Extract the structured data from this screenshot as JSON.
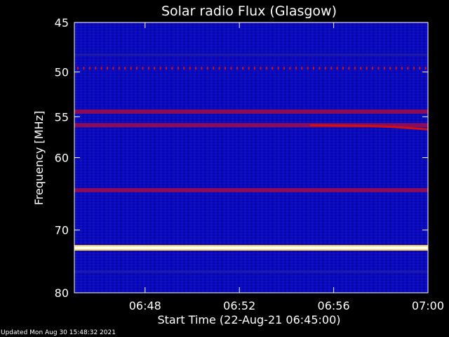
{
  "chart_data": {
    "type": "heatmap",
    "title": "Solar radio Flux (Glasgow)",
    "xlabel": "Start Time (22-Aug-21 06:45:00)",
    "ylabel": "Frequency [MHz]",
    "x_range": [
      "06:45",
      "07:00"
    ],
    "y_range": [
      45,
      80
    ],
    "y_scale": "log",
    "y_inverted": true,
    "x_ticks": [
      "06:48",
      "06:52",
      "06:56",
      "07:00"
    ],
    "y_ticks": [
      45,
      50,
      55,
      60,
      70,
      80
    ],
    "colors": {
      "background": "#0808b0",
      "medium": "#8a0c5a",
      "high": "#d01010",
      "peak": "#ffffff",
      "peak_edge": "#ffd24a"
    },
    "bands": [
      {
        "freq_mhz": 48.2,
        "level": "low"
      },
      {
        "freq_mhz": 54.4,
        "level": "medium"
      },
      {
        "freq_mhz": 56.0,
        "level": "medium"
      },
      {
        "freq_mhz": 64.3,
        "level": "medium"
      },
      {
        "freq_mhz": 72.7,
        "level": "peak"
      },
      {
        "freq_mhz": 76.5,
        "level": "low"
      }
    ],
    "periodic_markers": {
      "freq_mhz": 49.6,
      "level": "high"
    },
    "drift_feature": {
      "level": "high",
      "points": [
        {
          "time": "06:55:00",
          "freq_mhz": 56.0
        },
        {
          "time": "06:57:30",
          "freq_mhz": 56.1
        },
        {
          "time": "06:58:30",
          "freq_mhz": 56.2
        },
        {
          "time": "07:00:00",
          "freq_mhz": 56.5
        }
      ]
    }
  },
  "footer": "Updated Mon Aug 30 15:48:32 2021"
}
